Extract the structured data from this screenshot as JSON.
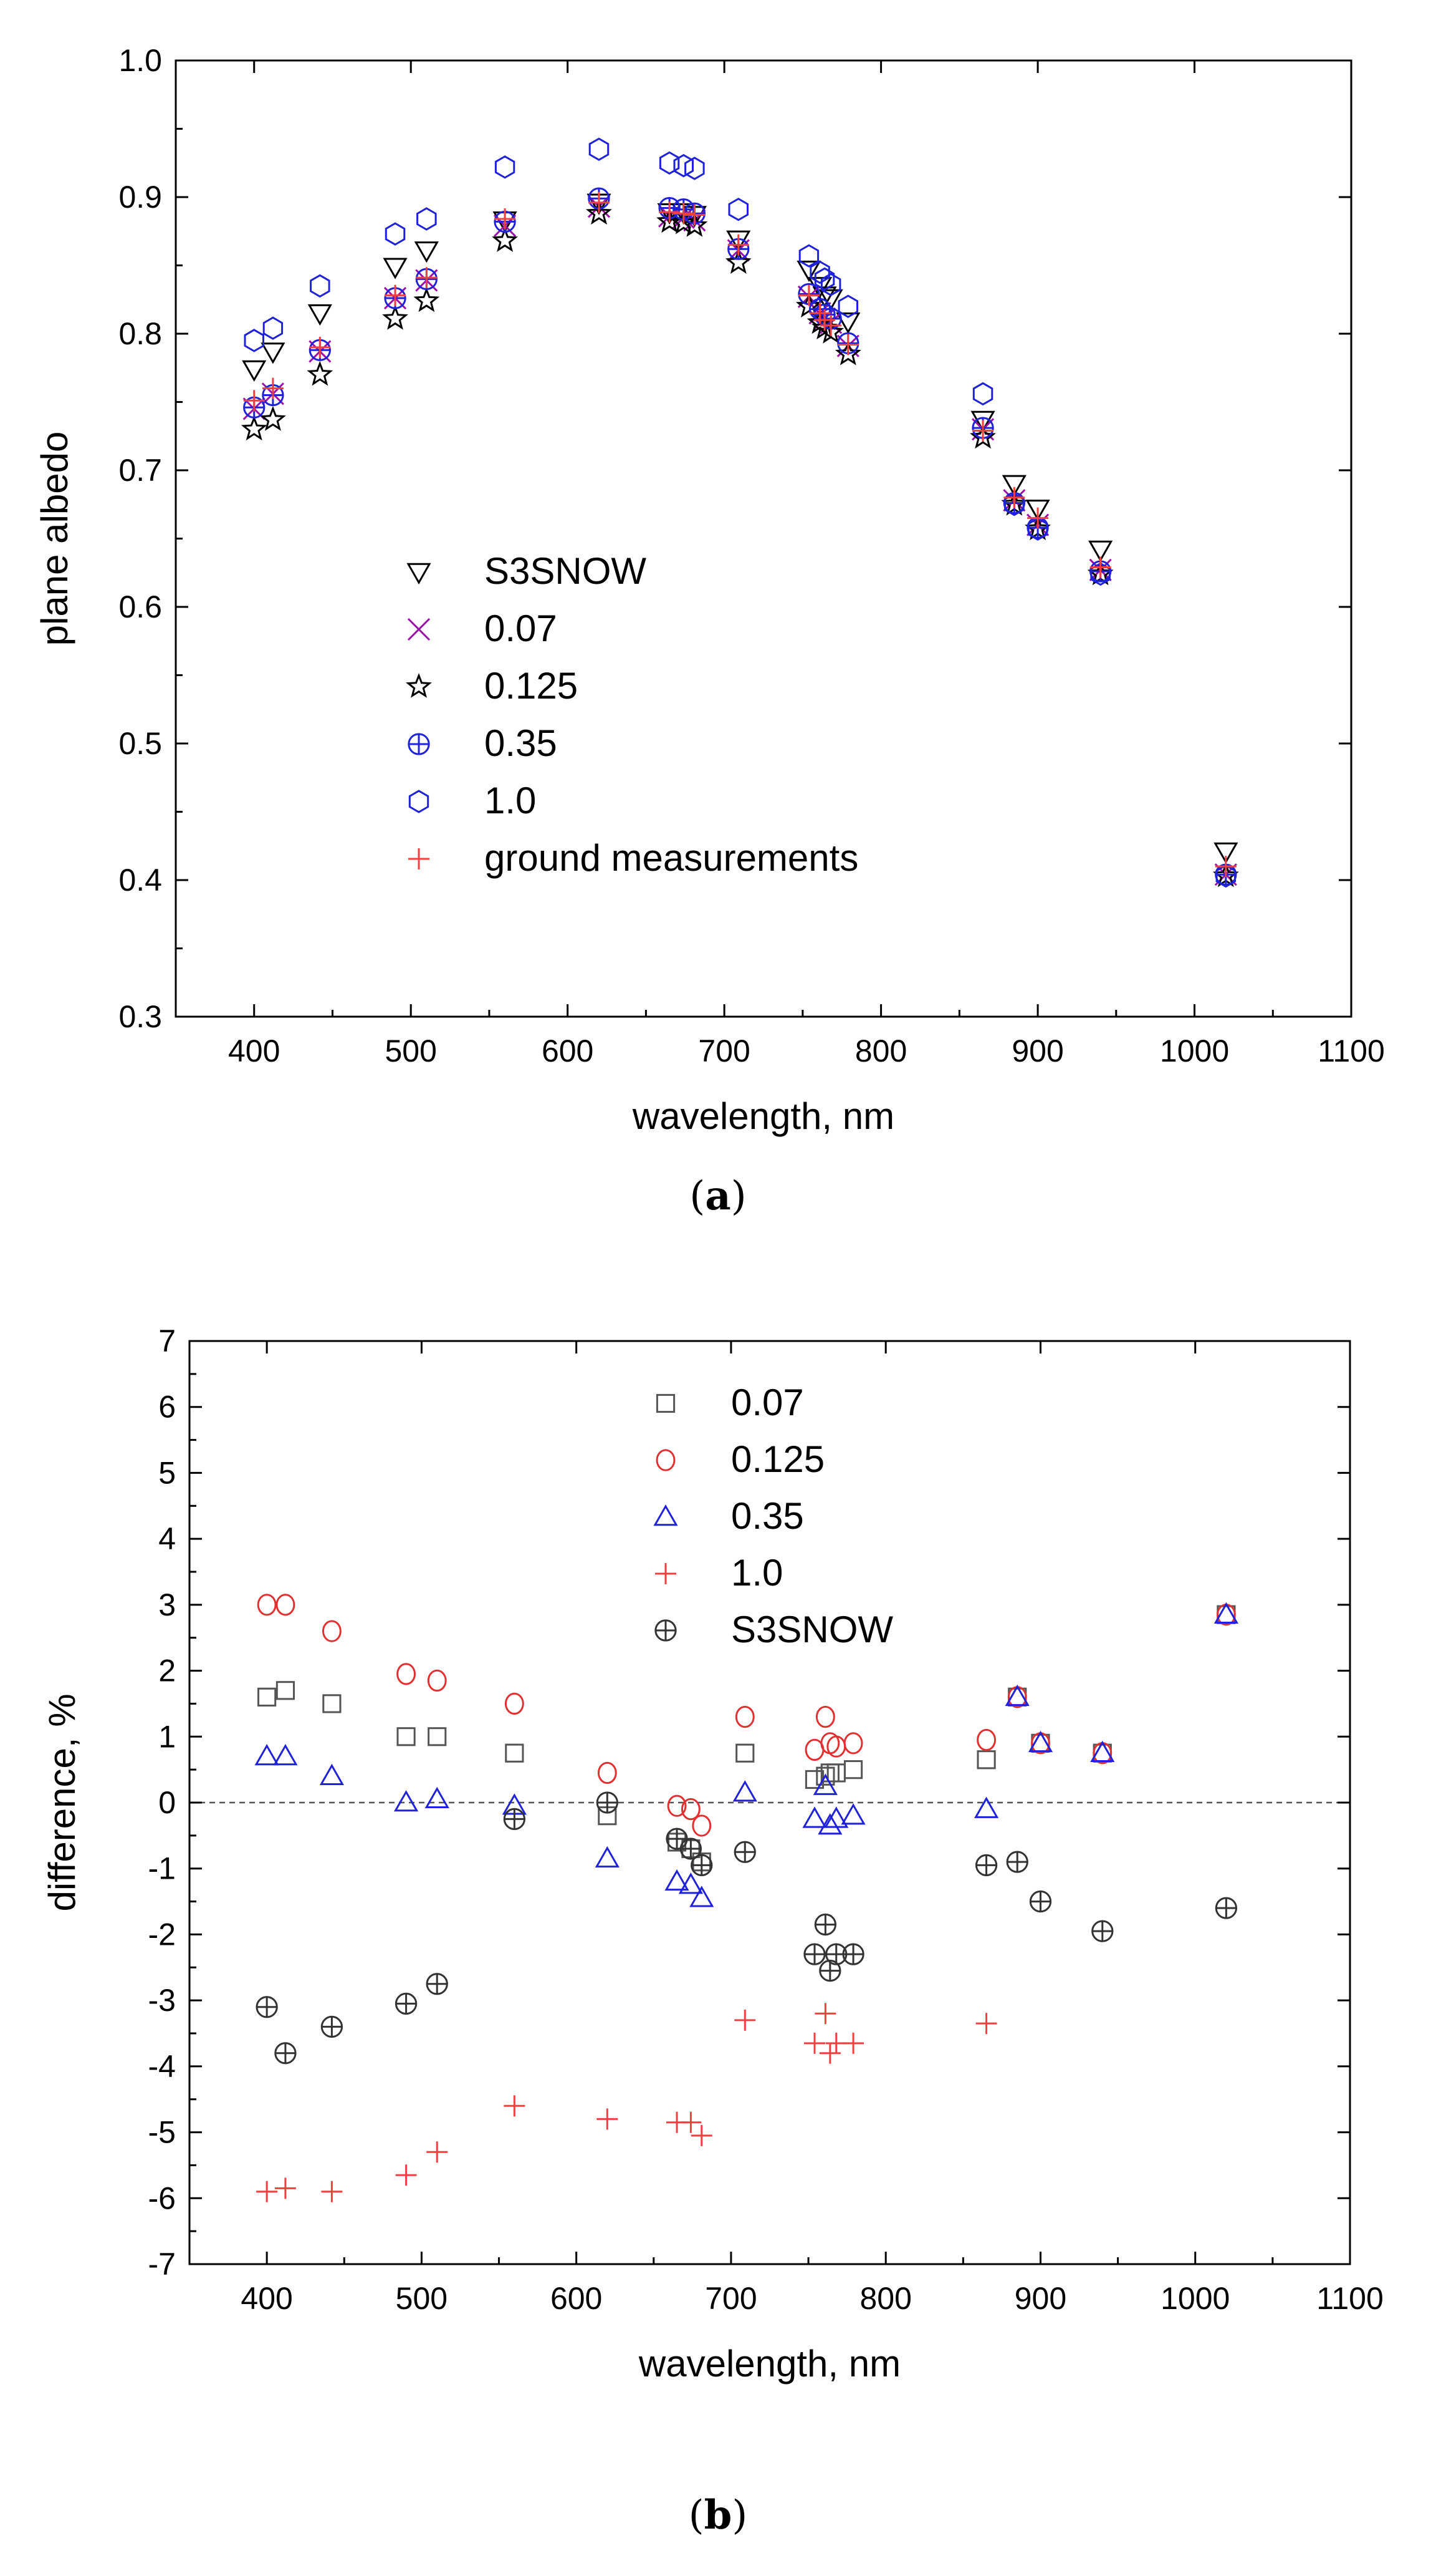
{
  "captions": {
    "a": "a",
    "b": "b"
  },
  "chart_data": [
    {
      "id": "a",
      "type": "scatter",
      "title": "",
      "xlabel": "wavelength, nm",
      "ylabel": "plane albedo",
      "xlim": [
        350,
        1100
      ],
      "ylim": [
        0.3,
        1.0
      ],
      "xticks": [
        400,
        500,
        600,
        700,
        800,
        900,
        1000,
        1100
      ],
      "yticks": [
        0.3,
        0.4,
        0.5,
        0.6,
        0.7,
        0.8,
        0.9,
        1.0
      ],
      "ytick_labels": [
        "0.3",
        "0.4",
        "0.5",
        "0.6",
        "0.7",
        "0.8",
        "0.9",
        "1.0"
      ],
      "grid": false,
      "legend_position": "center-left",
      "x": [
        400,
        412,
        442,
        490,
        510,
        560,
        620,
        665,
        674,
        681,
        709,
        754,
        761,
        764,
        768,
        779,
        865,
        885,
        900,
        940,
        1020
      ],
      "series": [
        {
          "name": "S3SNOW",
          "marker": "triangle-down",
          "color": "#000000",
          "values": [
            0.774,
            0.787,
            0.815,
            0.849,
            0.861,
            0.883,
            0.896,
            0.889,
            0.889,
            0.887,
            0.869,
            0.847,
            0.835,
            0.828,
            0.826,
            0.809,
            0.737,
            0.69,
            0.672,
            0.642,
            0.421
          ]
        },
        {
          "name": "0.07",
          "marker": "x",
          "color": "#9b0fa8",
          "values": [
            0.745,
            0.756,
            0.787,
            0.826,
            0.839,
            0.879,
            0.893,
            0.886,
            0.885,
            0.883,
            0.861,
            0.827,
            0.815,
            0.811,
            0.808,
            0.791,
            0.73,
            0.678,
            0.66,
            0.627,
            0.404
          ]
        },
        {
          "name": "0.125",
          "marker": "star",
          "color": "#000000",
          "values": [
            0.73,
            0.737,
            0.77,
            0.811,
            0.824,
            0.868,
            0.888,
            0.882,
            0.881,
            0.879,
            0.852,
            0.82,
            0.808,
            0.804,
            0.801,
            0.785,
            0.724,
            0.675,
            0.657,
            0.624,
            0.403
          ]
        },
        {
          "name": "0.35",
          "marker": "circle-plus",
          "color": "#1f22d6",
          "values": [
            0.746,
            0.755,
            0.788,
            0.826,
            0.84,
            0.882,
            0.899,
            0.892,
            0.891,
            0.888,
            0.862,
            0.829,
            0.818,
            0.814,
            0.811,
            0.793,
            0.731,
            0.676,
            0.658,
            0.626,
            0.404
          ]
        },
        {
          "name": "1.0",
          "marker": "hexagon",
          "color": "#1f22d6",
          "values": [
            0.795,
            0.804,
            0.835,
            0.873,
            0.884,
            0.922,
            0.935,
            0.925,
            0.923,
            0.921,
            0.891,
            0.857,
            0.845,
            0.84,
            0.836,
            0.82,
            0.756,
            0.675,
            0.657,
            0.624,
            0.403
          ]
        },
        {
          "name": "ground measurements",
          "marker": "plus",
          "color": "#f04040",
          "values": [
            0.751,
            0.76,
            0.79,
            0.828,
            0.841,
            0.884,
            0.896,
            0.889,
            0.888,
            0.887,
            0.865,
            0.828,
            0.815,
            0.81,
            0.806,
            0.792,
            0.729,
            0.68,
            0.665,
            0.629,
            0.41
          ]
        }
      ]
    },
    {
      "id": "b",
      "type": "scatter",
      "title": "",
      "xlabel": "wavelength, nm",
      "ylabel": "difference, %",
      "xlim": [
        350,
        1100
      ],
      "ylim": [
        -7,
        7
      ],
      "xticks": [
        400,
        500,
        600,
        700,
        800,
        900,
        1000,
        1100
      ],
      "yticks": [
        -7,
        -6,
        -5,
        -4,
        -3,
        -2,
        -1,
        0,
        1,
        2,
        3,
        4,
        5,
        6,
        7
      ],
      "ytick_labels": [
        "-7",
        "-6",
        "-5",
        "-4",
        "-3",
        "-2",
        "-1",
        "0",
        "1",
        "2",
        "3",
        "4",
        "5",
        "6",
        "7"
      ],
      "reference_line": 0,
      "grid": false,
      "legend_position": "top-center",
      "x": [
        400,
        412,
        442,
        490,
        510,
        560,
        620,
        665,
        674,
        681,
        709,
        754,
        761,
        764,
        768,
        779,
        865,
        885,
        900,
        940,
        1020
      ],
      "series": [
        {
          "name": "0.07",
          "marker": "square",
          "color": "#555555",
          "values": [
            1.6,
            1.7,
            1.5,
            1.0,
            1.0,
            0.75,
            -0.2,
            -0.6,
            -0.7,
            -0.9,
            0.75,
            0.35,
            0.4,
            0.45,
            0.45,
            0.5,
            0.65,
            1.6,
            0.9,
            0.75,
            2.85
          ]
        },
        {
          "name": "0.125",
          "marker": "circle",
          "color": "#e03030",
          "values": [
            3.0,
            3.0,
            2.6,
            1.95,
            1.85,
            1.5,
            0.45,
            -0.05,
            -0.1,
            -0.35,
            1.3,
            0.8,
            1.3,
            0.9,
            0.85,
            0.9,
            0.95,
            1.6,
            0.9,
            0.75,
            2.85
          ]
        },
        {
          "name": "0.35",
          "marker": "triangle-up",
          "color": "#1f22d6",
          "values": [
            0.7,
            0.7,
            0.4,
            0.0,
            0.05,
            -0.05,
            -0.85,
            -1.2,
            -1.25,
            -1.45,
            0.15,
            -0.25,
            0.25,
            -0.35,
            -0.25,
            -0.2,
            -0.1,
            1.6,
            0.9,
            0.75,
            2.85
          ]
        },
        {
          "name": "1.0",
          "marker": "plus",
          "color": "#f04040",
          "values": [
            -5.9,
            -5.85,
            -5.9,
            -5.65,
            -5.3,
            -4.6,
            -4.8,
            -4.85,
            -4.85,
            -5.05,
            -3.3,
            -3.65,
            -3.2,
            -3.8,
            -3.65,
            -3.65,
            -3.35,
            null,
            null,
            null,
            null
          ]
        },
        {
          "name": "S3SNOW",
          "marker": "circle-plus",
          "color": "#333333",
          "values": [
            -3.1,
            -3.8,
            -3.4,
            -3.05,
            -2.75,
            -0.25,
            0.0,
            -0.55,
            -0.7,
            -0.95,
            -0.75,
            -2.3,
            -1.85,
            -2.55,
            -2.3,
            -2.3,
            -0.95,
            -0.9,
            -1.5,
            -1.95,
            -1.6
          ]
        }
      ]
    }
  ]
}
